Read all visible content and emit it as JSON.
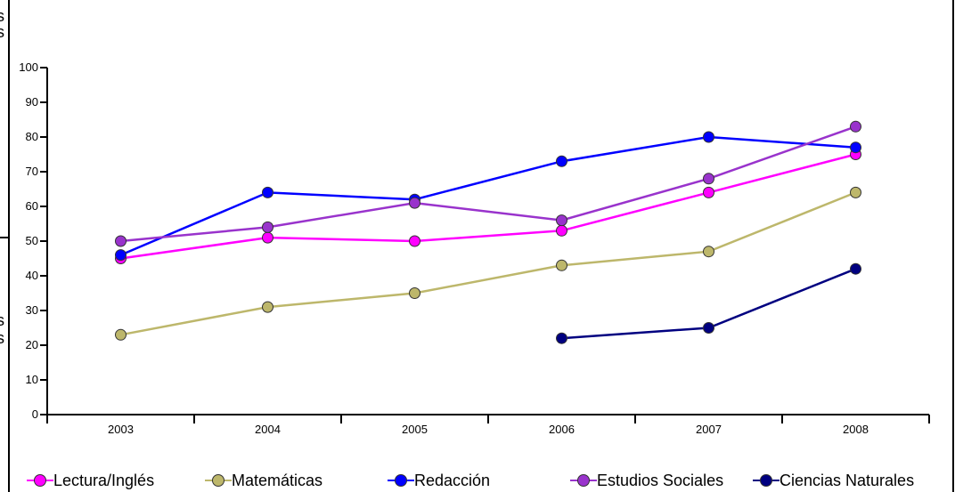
{
  "chart_data": {
    "type": "line",
    "categories": [
      "2003",
      "2004",
      "2005",
      "2006",
      "2007",
      "2008"
    ],
    "ylim": [
      0,
      100
    ],
    "yticks": [
      "0",
      "10",
      "20",
      "30",
      "40",
      "50",
      "60",
      "70",
      "80",
      "90",
      "100"
    ],
    "grid": false,
    "legend_position": "bottom",
    "series": [
      {
        "name": "Lectura/Inglés",
        "color": "#ff00ff",
        "values": [
          45,
          51,
          50,
          53,
          64,
          75
        ]
      },
      {
        "name": "Matemáticas",
        "color": "#bdb76b",
        "values": [
          23,
          31,
          35,
          43,
          47,
          64
        ]
      },
      {
        "name": "Redacción",
        "color": "#0000ff",
        "values": [
          46,
          64,
          62,
          73,
          80,
          77
        ]
      },
      {
        "name": "Estudios Sociales",
        "color": "#9933cc",
        "values": [
          50,
          54,
          61,
          56,
          68,
          83
        ]
      },
      {
        "name": "Ciencias Naturales",
        "color": "#000080",
        "values": [
          null,
          null,
          null,
          22,
          25,
          42
        ]
      }
    ]
  },
  "edge_fragments": [
    "s",
    "s",
    "s",
    "s"
  ]
}
